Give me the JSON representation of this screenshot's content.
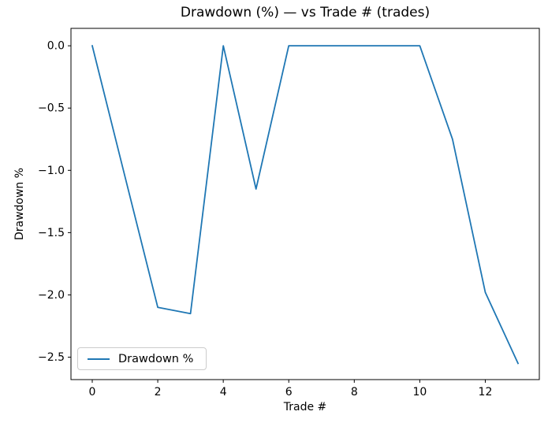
{
  "chart_data": {
    "type": "line",
    "title": "Drawdown (%) — vs Trade # (trades)",
    "xlabel": "Trade #",
    "ylabel": "Drawdown %",
    "x": [
      0,
      1,
      2,
      3,
      4,
      5,
      6,
      7,
      8,
      9,
      10,
      11,
      12,
      13
    ],
    "series": [
      {
        "name": "Drawdown %",
        "color": "#1f77b4",
        "values": [
          0.0,
          -1.05,
          -2.1,
          -2.15,
          0.0,
          -1.15,
          0.0,
          0.0,
          0.0,
          0.0,
          0.0,
          -0.75,
          -1.98,
          -2.55
        ]
      }
    ],
    "xlim": [
      -0.65,
      13.65
    ],
    "ylim": [
      -2.68,
      0.14
    ],
    "xticks": [
      0,
      2,
      4,
      6,
      8,
      10,
      12
    ],
    "yticks": [
      0.0,
      -0.5,
      -1.0,
      -1.5,
      -2.0,
      -2.5
    ],
    "grid": false,
    "legend_position": "lower left",
    "axis_color": "#000000",
    "legend_border_color": "#cccccc",
    "background_color": "#ffffff"
  }
}
